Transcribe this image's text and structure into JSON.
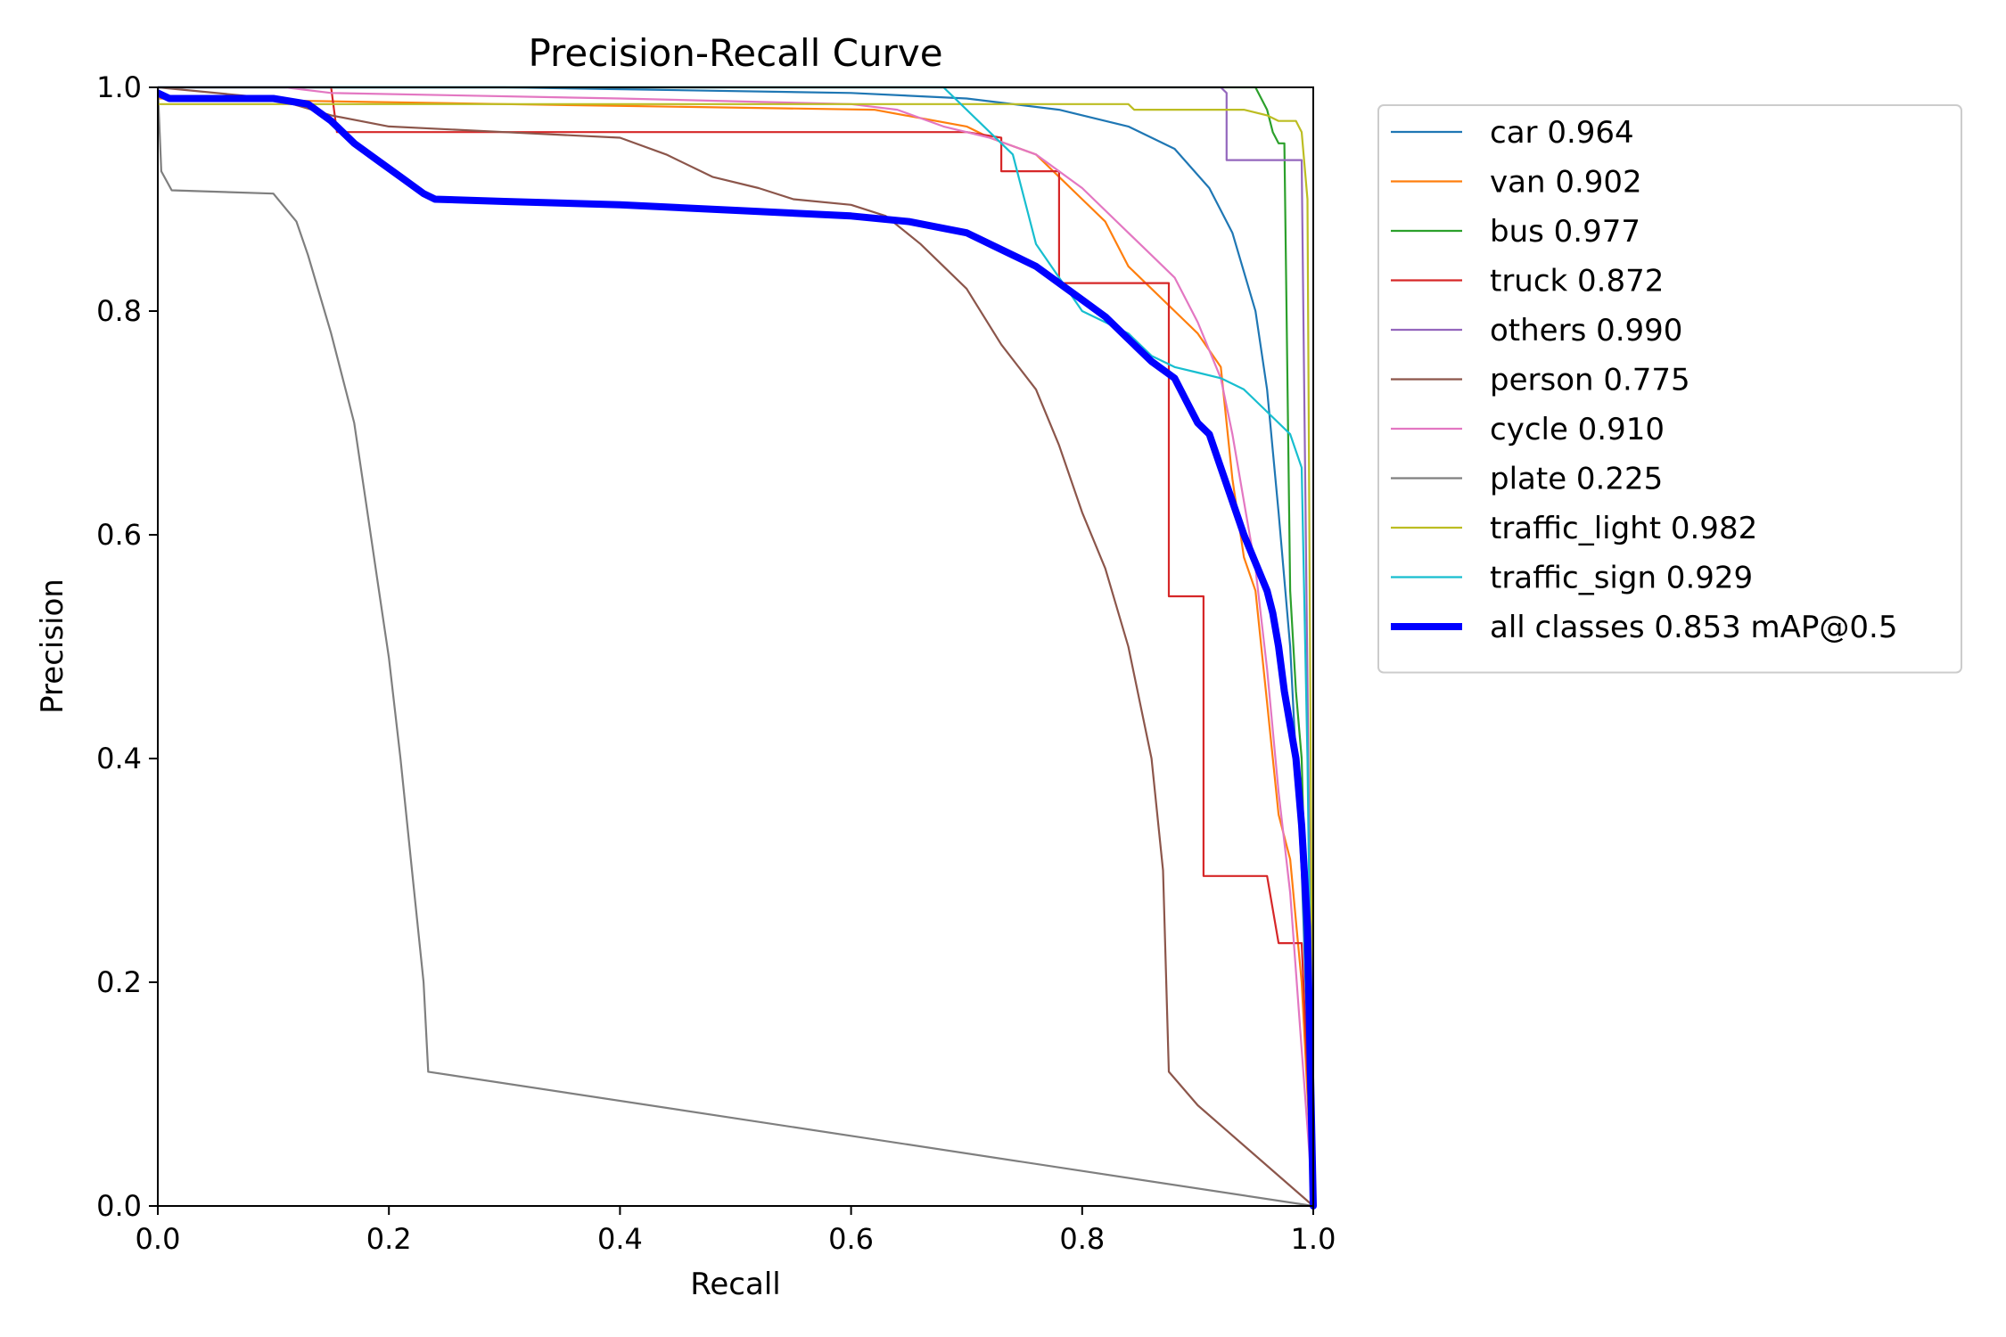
{
  "chart_data": {
    "type": "line",
    "title": "Precision-Recall Curve",
    "xlabel": "Recall",
    "ylabel": "Precision",
    "xlim": [
      0,
      1
    ],
    "ylim": [
      0,
      1
    ],
    "xticks": [
      "0.0",
      "0.2",
      "0.4",
      "0.6",
      "0.8",
      "1.0"
    ],
    "yticks": [
      "0.0",
      "0.2",
      "0.4",
      "0.6",
      "0.8",
      "1.0"
    ],
    "grid": false,
    "legend_position": "outside-top-right",
    "series": [
      {
        "name": "car",
        "label": "car 0.964",
        "color": "#1f77b4",
        "width": "thin",
        "x": [
          0,
          0.3,
          0.6,
          0.7,
          0.78,
          0.84,
          0.88,
          0.91,
          0.93,
          0.95,
          0.96,
          0.97,
          0.98,
          0.99,
          1.0
        ],
        "y": [
          1.0,
          1.0,
          0.995,
          0.99,
          0.98,
          0.965,
          0.945,
          0.91,
          0.87,
          0.8,
          0.73,
          0.62,
          0.5,
          0.3,
          0.0
        ]
      },
      {
        "name": "van",
        "label": "van 0.902",
        "color": "#ff7f0e",
        "width": "thin",
        "x": [
          0,
          0.3,
          0.62,
          0.7,
          0.72,
          0.76,
          0.78,
          0.8,
          0.82,
          0.84,
          0.86,
          0.88,
          0.9,
          0.92,
          0.93,
          0.94,
          0.95,
          0.96,
          0.97,
          0.98,
          0.99,
          1.0
        ],
        "y": [
          0.99,
          0.985,
          0.98,
          0.965,
          0.955,
          0.94,
          0.92,
          0.9,
          0.88,
          0.84,
          0.82,
          0.8,
          0.78,
          0.75,
          0.65,
          0.58,
          0.55,
          0.45,
          0.35,
          0.31,
          0.2,
          0.0
        ]
      },
      {
        "name": "bus",
        "label": "bus 0.977",
        "color": "#2ca02c",
        "width": "thin",
        "x": [
          0,
          0.9,
          0.95,
          0.96,
          0.965,
          0.97,
          0.975,
          0.98,
          0.985,
          0.99,
          1.0
        ],
        "y": [
          1.0,
          1.0,
          1.0,
          0.98,
          0.96,
          0.95,
          0.95,
          0.55,
          0.46,
          0.4,
          0.0
        ]
      },
      {
        "name": "truck",
        "label": "truck 0.872",
        "color": "#d62728",
        "width": "thin",
        "x": [
          0,
          0.15,
          0.155,
          0.6,
          0.7,
          0.73,
          0.73,
          0.78,
          0.78,
          0.875,
          0.875,
          0.905,
          0.905,
          0.96,
          0.97,
          0.99,
          1.0
        ],
        "y": [
          1.0,
          1.0,
          0.96,
          0.96,
          0.96,
          0.955,
          0.925,
          0.925,
          0.825,
          0.825,
          0.545,
          0.545,
          0.295,
          0.295,
          0.235,
          0.235,
          0.0
        ]
      },
      {
        "name": "others",
        "label": "others 0.990",
        "color": "#9467bd",
        "width": "thin",
        "x": [
          0,
          0.92,
          0.925,
          0.925,
          0.99,
          1.0
        ],
        "y": [
          1.0,
          1.0,
          0.995,
          0.935,
          0.935,
          0.0
        ]
      },
      {
        "name": "person",
        "label": "person 0.775",
        "color": "#8c564b",
        "width": "thin",
        "x": [
          0,
          0.1,
          0.15,
          0.2,
          0.3,
          0.4,
          0.44,
          0.48,
          0.52,
          0.55,
          0.6,
          0.63,
          0.66,
          0.7,
          0.73,
          0.76,
          0.78,
          0.8,
          0.82,
          0.84,
          0.86,
          0.87,
          0.875,
          0.9,
          1.0
        ],
        "y": [
          1.0,
          0.99,
          0.975,
          0.965,
          0.96,
          0.955,
          0.94,
          0.92,
          0.91,
          0.9,
          0.895,
          0.885,
          0.86,
          0.82,
          0.77,
          0.73,
          0.68,
          0.62,
          0.57,
          0.5,
          0.4,
          0.3,
          0.12,
          0.09,
          0.0
        ]
      },
      {
        "name": "cycle",
        "label": "cycle 0.910",
        "color": "#e377c2",
        "width": "thin",
        "x": [
          0,
          0.11,
          0.15,
          0.4,
          0.6,
          0.64,
          0.68,
          0.72,
          0.76,
          0.8,
          0.84,
          0.86,
          0.88,
          0.9,
          0.92,
          0.93,
          0.94,
          0.95,
          0.96,
          0.97,
          0.98,
          0.99,
          1.0
        ],
        "y": [
          1.0,
          1.0,
          0.995,
          0.99,
          0.985,
          0.98,
          0.965,
          0.955,
          0.94,
          0.91,
          0.87,
          0.85,
          0.83,
          0.79,
          0.74,
          0.69,
          0.63,
          0.57,
          0.48,
          0.37,
          0.28,
          0.14,
          0.0
        ]
      },
      {
        "name": "plate",
        "label": "plate 0.225",
        "color": "#7f7f7f",
        "width": "thin",
        "x": [
          0,
          0.003,
          0.012,
          0.1,
          0.12,
          0.13,
          0.15,
          0.17,
          0.18,
          0.19,
          0.2,
          0.21,
          0.22,
          0.23,
          0.234,
          1.0
        ],
        "y": [
          1.0,
          0.925,
          0.908,
          0.905,
          0.88,
          0.85,
          0.78,
          0.7,
          0.63,
          0.56,
          0.49,
          0.4,
          0.3,
          0.2,
          0.12,
          0.0
        ]
      },
      {
        "name": "traffic_light",
        "label": "traffic_light 0.982",
        "color": "#bcbd22",
        "width": "thin",
        "x": [
          0,
          0.5,
          0.84,
          0.845,
          0.94,
          0.96,
          0.97,
          0.985,
          0.99,
          0.995,
          1.0
        ],
        "y": [
          0.985,
          0.985,
          0.985,
          0.98,
          0.98,
          0.975,
          0.97,
          0.97,
          0.96,
          0.9,
          0.0
        ]
      },
      {
        "name": "traffic_sign",
        "label": "traffic_sign 0.929",
        "color": "#17becf",
        "width": "thin",
        "x": [
          0,
          0.68,
          0.7,
          0.72,
          0.74,
          0.75,
          0.76,
          0.78,
          0.8,
          0.82,
          0.84,
          0.86,
          0.88,
          0.9,
          0.92,
          0.94,
          0.96,
          0.98,
          0.99,
          0.995,
          1.0
        ],
        "y": [
          1.0,
          1.0,
          0.98,
          0.96,
          0.94,
          0.9,
          0.86,
          0.83,
          0.8,
          0.79,
          0.78,
          0.76,
          0.75,
          0.745,
          0.74,
          0.73,
          0.71,
          0.69,
          0.66,
          0.4,
          0.0
        ]
      },
      {
        "name": "all_classes",
        "label": "all classes 0.853 mAP@0.5",
        "color": "#0000ff",
        "width": "thick",
        "x": [
          0,
          0.01,
          0.05,
          0.1,
          0.13,
          0.15,
          0.17,
          0.19,
          0.21,
          0.23,
          0.24,
          0.3,
          0.4,
          0.5,
          0.6,
          0.65,
          0.7,
          0.73,
          0.76,
          0.78,
          0.8,
          0.82,
          0.84,
          0.86,
          0.88,
          0.89,
          0.9,
          0.91,
          0.92,
          0.93,
          0.94,
          0.95,
          0.96,
          0.965,
          0.97,
          0.975,
          0.98,
          0.985,
          0.99,
          0.995,
          1.0
        ],
        "y": [
          0.995,
          0.99,
          0.99,
          0.99,
          0.985,
          0.97,
          0.95,
          0.935,
          0.92,
          0.905,
          0.9,
          0.898,
          0.895,
          0.89,
          0.885,
          0.88,
          0.87,
          0.855,
          0.84,
          0.825,
          0.81,
          0.795,
          0.775,
          0.755,
          0.74,
          0.72,
          0.7,
          0.69,
          0.66,
          0.63,
          0.6,
          0.575,
          0.55,
          0.53,
          0.5,
          0.46,
          0.43,
          0.4,
          0.34,
          0.25,
          0.0
        ]
      }
    ]
  }
}
